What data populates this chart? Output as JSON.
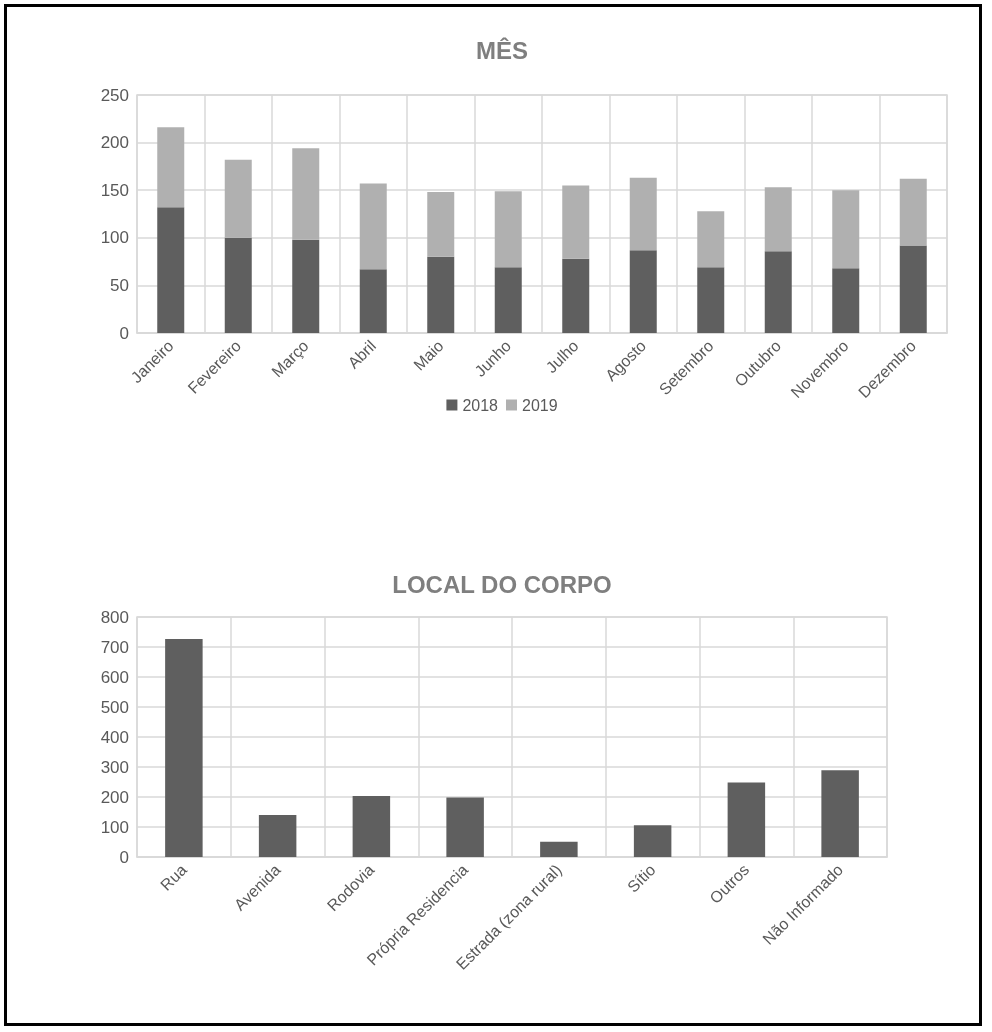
{
  "chart_data": [
    {
      "type": "bar",
      "title": "MÊS",
      "categories": [
        "Janeiro",
        "Fevereiro",
        "Março",
        "Abril",
        "Maio",
        "Junho",
        "Julho",
        "Agosto",
        "Setembro",
        "Outubro",
        "Novembro",
        "Dezembro"
      ],
      "series": [
        {
          "name": "2018",
          "color": "#5f5f5f",
          "values": [
            132,
            100,
            98,
            67,
            80,
            69,
            78,
            87,
            69,
            86,
            68,
            92
          ]
        },
        {
          "name": "2019",
          "color": "#b0b0b0",
          "values": [
            84,
            82,
            96,
            90,
            68,
            80,
            77,
            76,
            59,
            67,
            82,
            70
          ]
        }
      ],
      "stacked": true,
      "ylim": [
        0,
        250
      ],
      "yticks": [
        0,
        50,
        100,
        150,
        200,
        250
      ],
      "grid": true,
      "legend": "bottom"
    },
    {
      "type": "bar",
      "title": "LOCAL DO CORPO",
      "categories": [
        "Rua",
        "Avenida",
        "Rodovia",
        "Própria Residencia",
        "Estrada (zona rural)",
        "Sítio",
        "Outros",
        "Não Informado"
      ],
      "values": [
        727,
        140,
        203,
        198,
        51,
        106,
        248,
        289
      ],
      "color": "#5f5f5f",
      "ylim": [
        0,
        800
      ],
      "yticks": [
        0,
        100,
        200,
        300,
        400,
        500,
        600,
        700,
        800
      ],
      "grid": true
    }
  ]
}
